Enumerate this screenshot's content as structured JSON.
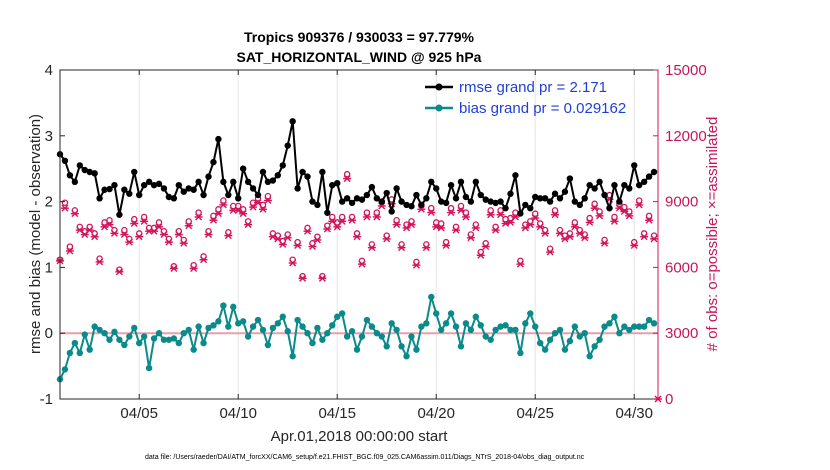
{
  "chart_data": {
    "type": "line",
    "title": "Tropics 909376 / 930033 = 97.779%",
    "subtitle": "SAT_HORIZONTAL_WIND @ 925 hPa",
    "xlabel": "Apr.01,2018 00:00:00 start",
    "ylabel": "rmse and bias (model - observation)",
    "y2label": "# of obs: o=possible; ×=assimilated",
    "footnote": "data file: /Users/raeder/DAI/ATM_forcXX/CAM6_setup/f.e21.FHIST_BGC.f09_025.CAM6assim.011/Diags_NTrS_2018-04/obs_diag_output.nc",
    "xlim": [
      1.0,
      31.2
    ],
    "ylim": [
      -1,
      4
    ],
    "y2lim": [
      0,
      15000
    ],
    "xticks": [
      5,
      10,
      15,
      20,
      25,
      30
    ],
    "xtick_labels": [
      "04/05",
      "04/10",
      "04/15",
      "04/20",
      "04/25",
      "04/30"
    ],
    "yticks": [
      -1,
      0,
      1,
      2,
      3,
      4
    ],
    "ytick_labels": [
      "-1",
      "0",
      "1",
      "2",
      "3",
      "4"
    ],
    "y2ticks": [
      0,
      3000,
      6000,
      9000,
      12000,
      15000
    ],
    "y2tick_labels": [
      "0",
      "3000",
      "6000",
      "9000",
      "12000",
      "15000"
    ],
    "zero_line": 0,
    "legend_position": "top-right",
    "colors": {
      "rmse": "#000000",
      "bias": "#0a8a8a",
      "counts": "#d4145a",
      "zero": "#e8a0a8"
    },
    "series": [
      {
        "name": "rmse grand pr = 2.171",
        "axis": "left",
        "x": [
          1.0,
          1.25,
          1.5,
          1.75,
          2.0,
          2.25,
          2.5,
          2.75,
          3.0,
          3.25,
          3.5,
          3.75,
          4.0,
          4.25,
          4.5,
          4.75,
          5.0,
          5.25,
          5.5,
          5.75,
          6.0,
          6.25,
          6.5,
          6.75,
          7.0,
          7.25,
          7.5,
          7.75,
          8.0,
          8.25,
          8.5,
          8.75,
          9.0,
          9.25,
          9.5,
          9.75,
          10.0,
          10.25,
          10.5,
          10.75,
          11.0,
          11.25,
          11.5,
          11.75,
          12.0,
          12.25,
          12.5,
          12.75,
          13.0,
          13.25,
          13.5,
          13.75,
          14.0,
          14.25,
          14.5,
          14.75,
          15.0,
          15.25,
          15.5,
          15.75,
          16.0,
          16.25,
          16.5,
          16.75,
          17.0,
          17.25,
          17.5,
          17.75,
          18.0,
          18.25,
          18.5,
          18.75,
          19.0,
          19.25,
          19.5,
          19.75,
          20.0,
          20.25,
          20.5,
          20.75,
          21.0,
          21.25,
          21.5,
          21.75,
          22.0,
          22.25,
          22.5,
          22.75,
          23.0,
          23.25,
          23.5,
          23.75,
          24.0,
          24.25,
          24.5,
          24.75,
          25.0,
          25.25,
          25.5,
          25.75,
          26.0,
          26.25,
          26.5,
          26.75,
          27.0,
          27.25,
          27.5,
          27.75,
          28.0,
          28.25,
          28.5,
          28.75,
          29.0,
          29.25,
          29.5,
          29.75,
          30.0,
          30.25,
          30.5,
          30.75,
          31.0
        ],
        "values": [
          2.72,
          2.62,
          2.4,
          2.3,
          2.55,
          2.48,
          2.45,
          2.43,
          2.05,
          2.18,
          2.19,
          2.25,
          1.8,
          2.18,
          2.12,
          2.45,
          2.1,
          2.25,
          2.3,
          2.25,
          2.27,
          2.2,
          2.07,
          2.05,
          2.25,
          2.15,
          2.2,
          2.18,
          2.3,
          2.1,
          2.38,
          2.6,
          2.95,
          2.3,
          2.1,
          2.3,
          2.05,
          2.5,
          2.3,
          2.2,
          2.1,
          2.45,
          2.3,
          2.32,
          2.4,
          2.55,
          2.85,
          3.22,
          2.2,
          2.45,
          2.38,
          2.0,
          1.95,
          2.45,
          1.83,
          2.25,
          2.28,
          2.0,
          2.05,
          1.98,
          2.05,
          2.03,
          2.1,
          2.22,
          2.05,
          2.0,
          2.13,
          1.85,
          2.2,
          2.0,
          1.95,
          1.93,
          2.1,
          1.95,
          2.05,
          2.3,
          2.2,
          2.0,
          1.98,
          2.25,
          2.05,
          2.3,
          2.07,
          2.0,
          2.3,
          2.1,
          2.03,
          2.0,
          1.98,
          2.0,
          1.9,
          2.12,
          2.4,
          1.82,
          1.95,
          1.9,
          2.07,
          2.05,
          2.05,
          2.0,
          2.12,
          2.05,
          2.15,
          2.35,
          2.0,
          1.95,
          2.05,
          2.25,
          2.2,
          2.3,
          2.1,
          1.9,
          2.25,
          2.0,
          2.25,
          2.2,
          2.55,
          2.25,
          2.3,
          2.38,
          2.45
        ]
      },
      {
        "name": "bias grand pr = 0.029162",
        "axis": "left",
        "x": [
          1.0,
          1.25,
          1.5,
          1.75,
          2.0,
          2.25,
          2.5,
          2.75,
          3.0,
          3.25,
          3.5,
          3.75,
          4.0,
          4.25,
          4.5,
          4.75,
          5.0,
          5.25,
          5.5,
          5.75,
          6.0,
          6.25,
          6.5,
          6.75,
          7.0,
          7.25,
          7.5,
          7.75,
          8.0,
          8.25,
          8.5,
          8.75,
          9.0,
          9.25,
          9.5,
          9.75,
          10.0,
          10.25,
          10.5,
          10.75,
          11.0,
          11.25,
          11.5,
          11.75,
          12.0,
          12.25,
          12.5,
          12.75,
          13.0,
          13.25,
          13.5,
          13.75,
          14.0,
          14.25,
          14.5,
          14.75,
          15.0,
          15.25,
          15.5,
          15.75,
          16.0,
          16.25,
          16.5,
          16.75,
          17.0,
          17.25,
          17.5,
          17.75,
          18.0,
          18.25,
          18.5,
          18.75,
          19.0,
          19.25,
          19.5,
          19.75,
          20.0,
          20.25,
          20.5,
          20.75,
          21.0,
          21.25,
          21.5,
          21.75,
          22.0,
          22.25,
          22.5,
          22.75,
          23.0,
          23.25,
          23.5,
          23.75,
          24.0,
          24.25,
          24.5,
          24.75,
          25.0,
          25.25,
          25.5,
          25.75,
          26.0,
          26.25,
          26.5,
          26.75,
          27.0,
          27.25,
          27.5,
          27.75,
          28.0,
          28.25,
          28.5,
          28.75,
          29.0,
          29.25,
          29.5,
          29.75,
          30.0,
          30.25,
          30.5,
          30.75,
          31.0
        ],
        "values": [
          -0.7,
          -0.55,
          -0.3,
          -0.15,
          -0.3,
          -0.02,
          -0.25,
          0.1,
          0.05,
          0.0,
          -0.1,
          0.02,
          -0.1,
          -0.18,
          -0.05,
          0.08,
          -0.15,
          -0.05,
          -0.53,
          -0.08,
          0.0,
          -0.1,
          -0.1,
          -0.08,
          -0.15,
          0.0,
          0.05,
          -0.25,
          0.1,
          -0.15,
          0.08,
          0.12,
          0.18,
          0.42,
          0.1,
          0.4,
          0.15,
          0.18,
          -0.05,
          0.1,
          0.2,
          0.05,
          -0.18,
          0.08,
          0.15,
          0.25,
          0.03,
          -0.35,
          0.2,
          0.1,
          0.0,
          -0.15,
          0.08,
          -0.1,
          0.0,
          0.12,
          0.25,
          0.3,
          -0.05,
          0.03,
          -0.25,
          -0.05,
          0.2,
          0.1,
          0.0,
          -0.05,
          -0.2,
          0.15,
          0.05,
          -0.2,
          -0.35,
          -0.05,
          -0.25,
          0.1,
          0.15,
          0.55,
          0.3,
          0.05,
          0.15,
          0.3,
          0.1,
          -0.2,
          0.15,
          0.05,
          0.25,
          0.12,
          -0.05,
          -0.1,
          0.05,
          0.1,
          0.12,
          0.05,
          0.05,
          -0.3,
          0.15,
          0.3,
          0.1,
          -0.15,
          -0.25,
          -0.1,
          0.0,
          0.05,
          -0.25,
          -0.12,
          0.1,
          -0.05,
          0.0,
          -0.35,
          -0.2,
          -0.1,
          0.1,
          0.15,
          0.25,
          0.0,
          0.1,
          0.05,
          0.1,
          0.1,
          0.1,
          0.2,
          0.15
        ]
      },
      {
        "name": "obs possible",
        "axis": "right",
        "x": [
          1.0,
          1.25,
          1.5,
          1.75,
          2.0,
          2.25,
          2.5,
          2.75,
          3.0,
          3.25,
          3.5,
          3.75,
          4.0,
          4.25,
          4.5,
          4.75,
          5.0,
          5.25,
          5.5,
          5.75,
          6.0,
          6.25,
          6.5,
          6.75,
          7.0,
          7.25,
          7.5,
          7.75,
          8.0,
          8.25,
          8.5,
          8.75,
          9.0,
          9.25,
          9.5,
          9.75,
          10.0,
          10.25,
          10.5,
          10.75,
          11.0,
          11.25,
          11.5,
          11.75,
          12.0,
          12.25,
          12.5,
          12.75,
          13.0,
          13.25,
          13.5,
          13.75,
          14.0,
          14.25,
          14.5,
          14.75,
          15.0,
          15.25,
          15.5,
          15.75,
          16.0,
          16.25,
          16.5,
          16.75,
          17.0,
          17.25,
          17.5,
          17.75,
          18.0,
          18.25,
          18.5,
          18.75,
          19.0,
          19.25,
          19.5,
          19.75,
          20.0,
          20.25,
          20.5,
          20.75,
          21.0,
          21.25,
          21.5,
          21.75,
          22.0,
          22.25,
          22.5,
          22.75,
          23.0,
          23.25,
          23.5,
          23.75,
          24.0,
          24.25,
          24.5,
          24.75,
          25.0,
          25.25,
          25.5,
          25.75,
          26.0,
          26.25,
          26.5,
          26.75,
          27.0,
          27.25,
          27.5,
          27.75,
          28.0,
          28.25,
          28.5,
          28.75,
          29.0,
          29.25,
          29.5,
          29.75,
          30.0,
          30.25,
          30.5,
          30.75,
          31.0
        ],
        "values": [
          6350,
          8950,
          6950,
          8600,
          7850,
          7650,
          7850,
          7550,
          6400,
          8050,
          8150,
          7700,
          5900,
          7700,
          7300,
          8200,
          7550,
          8300,
          7800,
          7800,
          8050,
          7650,
          7300,
          6050,
          7650,
          7250,
          8100,
          6100,
          8500,
          6500,
          7650,
          8350,
          8650,
          9050,
          7600,
          8800,
          8800,
          8650,
          8100,
          8950,
          9150,
          8850,
          9250,
          7550,
          7450,
          7200,
          7500,
          6350,
          7150,
          5600,
          7800,
          7100,
          7400,
          5600,
          7900,
          8300,
          8050,
          8300,
          10250,
          8300,
          7550,
          6300,
          8500,
          7050,
          8500,
          9000,
          7450,
          9100,
          8150,
          7050,
          7950,
          8100,
          6250,
          8850,
          7050,
          8700,
          8050,
          8000,
          7150,
          8700,
          7850,
          8800,
          8500,
          7500,
          7950,
          6700,
          7100,
          8600,
          7850,
          8600,
          8200,
          8250,
          8500,
          6300,
          7950,
          8100,
          8450,
          8000,
          7700,
          6850,
          8600,
          7700,
          7450,
          7550,
          8050,
          7700,
          7500,
          8250,
          8900,
          8550,
          7250,
          9300,
          8300,
          8900,
          8750,
          8550,
          7150,
          9050,
          7550,
          8350,
          7450
        ]
      },
      {
        "name": "obs assimilated",
        "axis": "right",
        "x": [
          1.0,
          1.25,
          1.5,
          1.75,
          2.0,
          2.25,
          2.5,
          2.75,
          3.0,
          3.25,
          3.5,
          3.75,
          4.0,
          4.25,
          4.5,
          4.75,
          5.0,
          5.25,
          5.5,
          5.75,
          6.0,
          6.25,
          6.5,
          6.75,
          7.0,
          7.25,
          7.5,
          7.75,
          8.0,
          8.25,
          8.5,
          8.75,
          9.0,
          9.25,
          9.5,
          9.75,
          10.0,
          10.25,
          10.5,
          10.75,
          11.0,
          11.25,
          11.5,
          11.75,
          12.0,
          12.25,
          12.5,
          12.75,
          13.0,
          13.25,
          13.5,
          13.75,
          14.0,
          14.25,
          14.5,
          14.75,
          15.0,
          15.25,
          15.5,
          15.75,
          16.0,
          16.25,
          16.5,
          16.75,
          17.0,
          17.25,
          17.5,
          17.75,
          18.0,
          18.25,
          18.5,
          18.75,
          19.0,
          19.25,
          19.5,
          19.75,
          20.0,
          20.25,
          20.5,
          20.75,
          21.0,
          21.25,
          21.5,
          21.75,
          22.0,
          22.25,
          22.5,
          22.75,
          23.0,
          23.25,
          23.5,
          23.75,
          24.0,
          24.25,
          24.5,
          24.75,
          25.0,
          25.25,
          25.5,
          25.75,
          26.0,
          26.25,
          26.5,
          26.75,
          27.0,
          27.25,
          27.5,
          27.75,
          28.0,
          28.25,
          28.5,
          28.75,
          29.0,
          29.25,
          29.5,
          29.75,
          30.0,
          30.25,
          30.5,
          30.75,
          31.0,
          31.2
        ],
        "values": [
          6300,
          8700,
          6750,
          8450,
          7700,
          7500,
          7700,
          7400,
          6250,
          7850,
          7950,
          7550,
          5800,
          7500,
          7150,
          8000,
          7400,
          8100,
          7650,
          7650,
          7850,
          7500,
          7150,
          5950,
          7500,
          7100,
          7900,
          5950,
          8300,
          6350,
          7500,
          8150,
          8450,
          8850,
          7450,
          8600,
          8600,
          8450,
          7950,
          8750,
          8950,
          8650,
          9050,
          7400,
          7300,
          7050,
          7350,
          6200,
          7000,
          5500,
          7650,
          6950,
          7250,
          5500,
          7750,
          8100,
          7850,
          8100,
          10050,
          8150,
          7400,
          6150,
          8300,
          6900,
          8300,
          8800,
          7300,
          8900,
          7950,
          6900,
          7800,
          7950,
          6100,
          8650,
          6900,
          8500,
          7850,
          7800,
          7000,
          8500,
          7700,
          8600,
          8300,
          7350,
          7800,
          6550,
          6950,
          8400,
          7700,
          8400,
          8000,
          8050,
          8300,
          6150,
          7800,
          7950,
          8250,
          7850,
          7550,
          6700,
          8400,
          7550,
          7300,
          7400,
          7850,
          7550,
          7350,
          8050,
          8700,
          8350,
          7100,
          9100,
          8100,
          8700,
          8550,
          8350,
          7000,
          8850,
          7400,
          8150,
          7300,
          0
        ]
      }
    ]
  }
}
